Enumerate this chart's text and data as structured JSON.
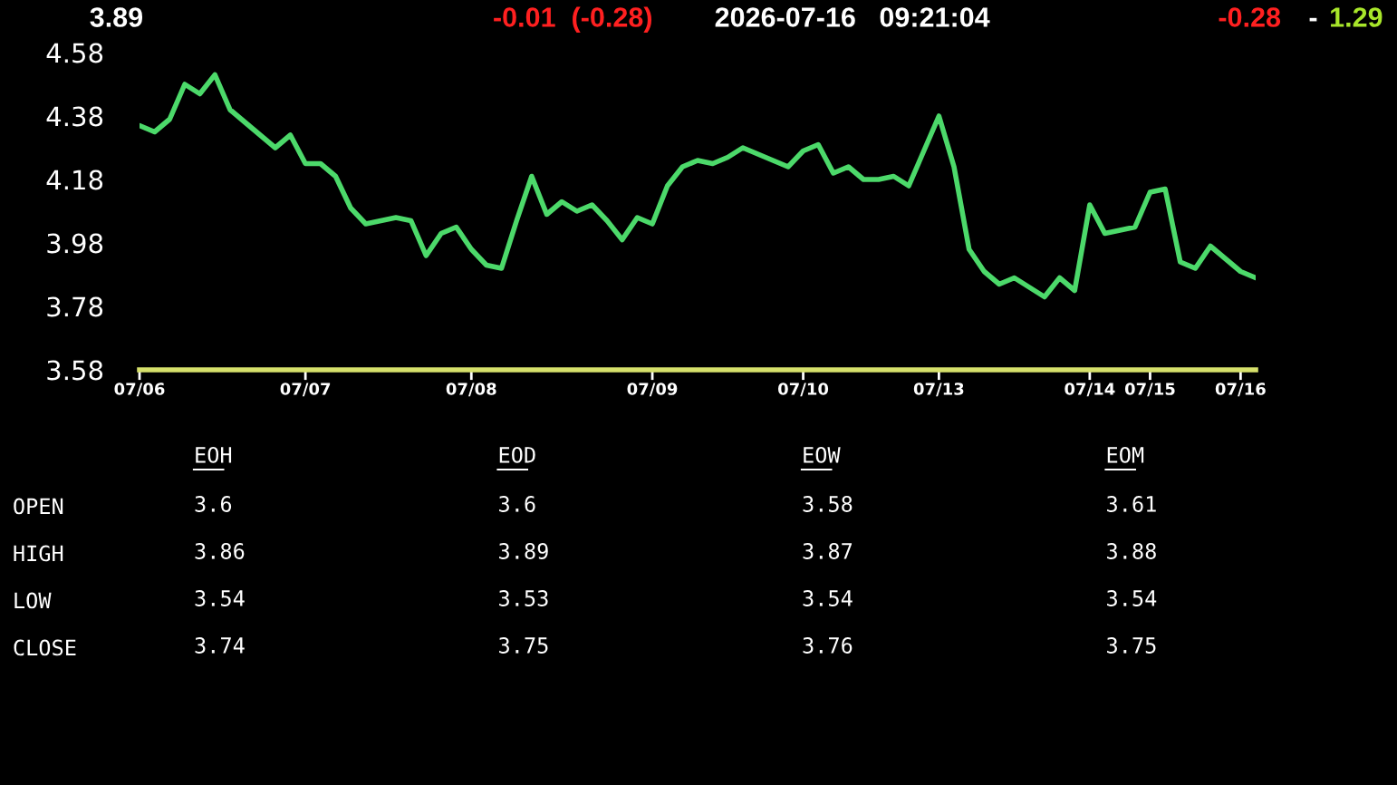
{
  "chart_data": [
    {
      "type": "line",
      "annotations": [
        "3.89",
        "-0.01  (-0.28)",
        "2026-07-16   09:21:04",
        "-0.28",
        "-",
        "1.29"
      ],
      "categories": [
        "07/06",
        null,
        null,
        null,
        null,
        null,
        null,
        null,
        null,
        null,
        null,
        "07/07",
        null,
        null,
        null,
        null,
        null,
        null,
        null,
        null,
        null,
        null,
        "07/08",
        null,
        null,
        null,
        null,
        null,
        null,
        null,
        null,
        null,
        null,
        null,
        "07/09",
        null,
        null,
        null,
        null,
        null,
        null,
        null,
        null,
        null,
        "07/10",
        null,
        null,
        null,
        null,
        null,
        null,
        null,
        null,
        "07/13",
        null,
        null,
        null,
        null,
        null,
        null,
        null,
        null,
        null,
        "07/14",
        null,
        null,
        null,
        "07/15",
        null,
        null,
        null,
        null,
        null,
        "07/16",
        null
      ],
      "series": [
        {
          "color": "#4cd96a",
          "values": [
            4.35,
            4.33,
            4.37,
            4.48,
            4.45,
            4.51,
            4.4,
            4.36,
            4.32,
            4.28,
            4.32,
            4.23,
            4.23,
            4.19,
            4.09,
            4.04,
            4.05,
            4.06,
            4.05,
            3.94,
            4.01,
            4.03,
            3.96,
            3.91,
            3.9,
            4.05,
            4.19,
            4.07,
            4.11,
            4.08,
            4.1,
            4.05,
            3.99,
            4.06,
            4.04,
            4.16,
            4.22,
            4.24,
            4.23,
            4.25,
            4.28,
            4.26,
            4.24,
            4.22,
            4.27,
            4.29,
            4.2,
            4.22,
            4.18,
            4.18,
            4.19,
            4.16,
            4.27,
            4.38,
            4.22,
            3.96,
            3.89,
            3.85,
            3.87,
            3.84,
            3.81,
            3.87,
            3.83,
            4.1,
            4.01,
            4.02,
            4.03,
            4.14,
            4.15,
            3.92,
            3.9,
            3.97,
            3.93,
            3.89,
            3.87
          ]
        }
      ],
      "ylim": [
        3.58,
        4.58
      ],
      "yticks": [
        3.58,
        3.78,
        3.98,
        4.18,
        4.38,
        4.58
      ],
      "grid": false,
      "legend": false,
      "marker": "none",
      "line_style": "solid"
    },
    {
      "type": "heatmap",
      "categories": [
        "EOH",
        "EOD",
        "EOW",
        "EOM"
      ],
      "y_categories": [
        "OPEN",
        "HIGH",
        "LOW",
        "CLOSE"
      ],
      "cells": [
        [
          3.6,
          3.6,
          3.58,
          3.61
        ],
        [
          3.86,
          3.89,
          3.87,
          3.88
        ],
        [
          3.54,
          3.53,
          3.54,
          3.54
        ],
        [
          3.74,
          3.75,
          3.76,
          3.75
        ]
      ],
      "data_labels": true
    }
  ]
}
